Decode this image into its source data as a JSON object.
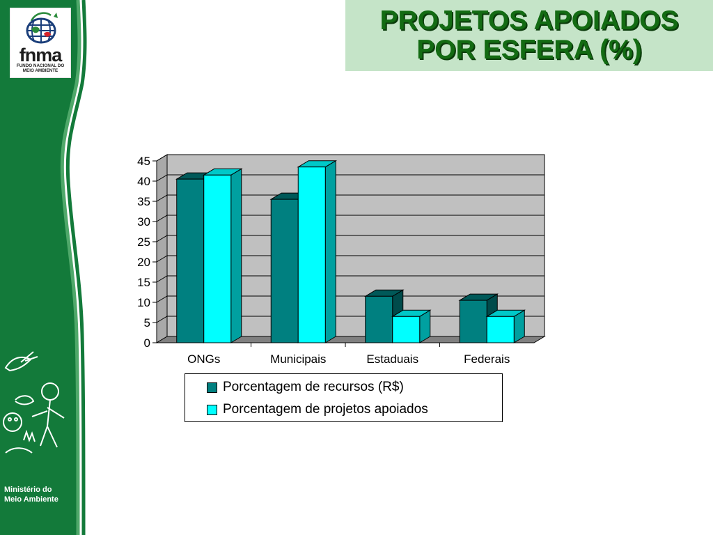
{
  "logo": {
    "name": "fnma",
    "subtitle_line1": "FUNDO NACIONAL DO",
    "subtitle_line2": "MEIO AMBIENTE"
  },
  "ministry": {
    "line1": "Ministério do",
    "line2": "Meio Ambiente"
  },
  "title": {
    "line1": "PROJETOS APOIADOS",
    "line2": "POR ESFERA (%)"
  },
  "colors": {
    "sidebar": "#137a3a",
    "title_bg": "#c5e4c8",
    "title_text": "#136b13",
    "series1": "#008080",
    "series2": "#00ffff",
    "plot_bg": "#c0c0c0"
  },
  "chart_data": {
    "type": "bar",
    "style": "3d-clustered",
    "title": "PROJETOS APOIADOS POR ESFERA (%)",
    "categories": [
      "ONGs",
      "Municipais",
      "Estaduais",
      "Federais"
    ],
    "series": [
      {
        "name": "Porcentagem de recursos (R$)",
        "values": [
          40.5,
          35.5,
          11.5,
          10.5
        ]
      },
      {
        "name": "Porcentagem de projetos apoiados",
        "values": [
          41.5,
          43.5,
          6.5,
          6.5
        ]
      }
    ],
    "ylim": [
      0,
      45
    ],
    "yticks": [
      0,
      5,
      10,
      15,
      20,
      25,
      30,
      35,
      40,
      45
    ],
    "xlabel": "",
    "ylabel": "",
    "grid": true,
    "legend_position": "bottom"
  }
}
